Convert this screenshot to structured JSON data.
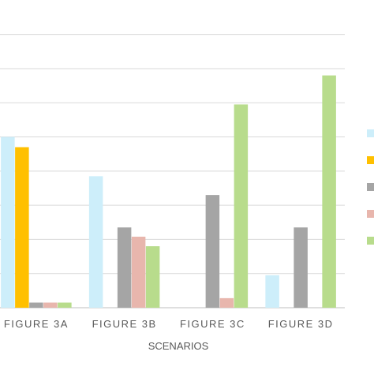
{
  "chart_data": {
    "type": "bar",
    "xlabel": "SCENARIOS",
    "ylabel": "",
    "categories": [
      "FIGURE 3A",
      "FIGURE 3B",
      "FIGURE 3C",
      "FIGURE 3D"
    ],
    "ylim": [
      0,
      8.5
    ],
    "grid": true,
    "legend_position": "right",
    "series": [
      {
        "color": "#cdeefa",
        "values": [
          5.0,
          3.85,
          0.0,
          0.95
        ]
      },
      {
        "color": "#ffc000",
        "values": [
          4.7,
          0.0,
          0.0,
          0.0
        ]
      },
      {
        "color": "#a5a5a5",
        "values": [
          0.15,
          2.35,
          3.3,
          2.35
        ]
      },
      {
        "color": "#e8b6ad",
        "values": [
          0.15,
          2.08,
          0.28,
          0.0
        ]
      },
      {
        "color": "#b8dc8c",
        "values": [
          0.15,
          1.8,
          5.95,
          6.8
        ]
      }
    ]
  }
}
